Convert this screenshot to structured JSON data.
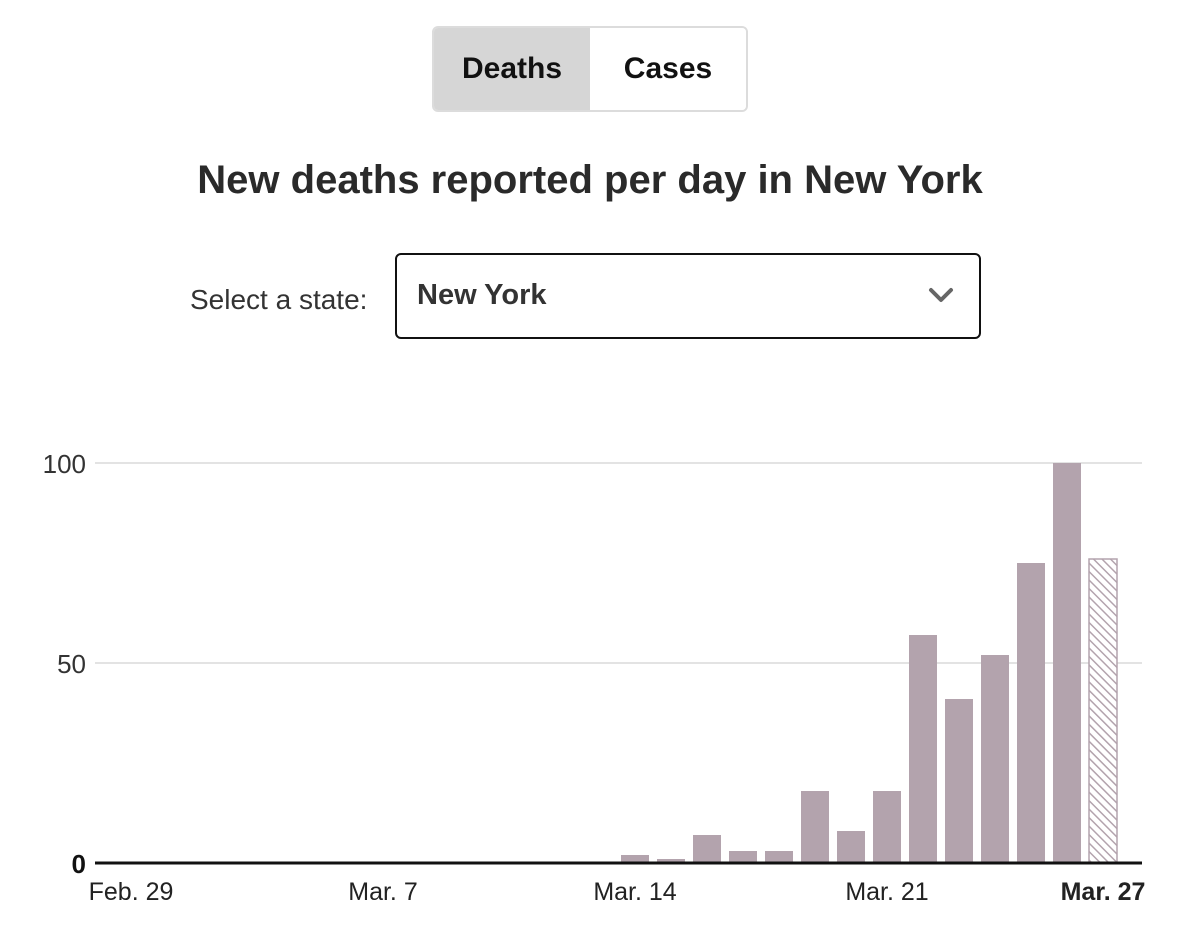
{
  "toggle": {
    "options": [
      {
        "label": "Deaths",
        "active": true
      },
      {
        "label": "Cases",
        "active": false
      }
    ]
  },
  "title": "New deaths reported per day in New York",
  "state_selector": {
    "label": "Select a state:",
    "value": "New York",
    "icon": "chevron-down-icon"
  },
  "colors": {
    "bar": "#b3a3ad",
    "grid": "#e3e3e3",
    "axis": "#111111",
    "hatch_bar": "#b3a3ad"
  },
  "chart_data": {
    "type": "bar",
    "title": "New deaths reported per day in New York",
    "xlabel": "",
    "ylabel": "",
    "ylim": [
      0,
      100
    ],
    "yticks": [
      0,
      50,
      100
    ],
    "ytick_labels": [
      "0",
      "50",
      "100"
    ],
    "x_tick_labels": [
      {
        "label": "Feb. 29",
        "date": "Feb. 29",
        "bold": false
      },
      {
        "label": "Mar. 7",
        "date": "Mar. 7",
        "bold": false
      },
      {
        "label": "Mar. 14",
        "date": "Mar. 14",
        "bold": false
      },
      {
        "label": "Mar. 21",
        "date": "Mar. 21",
        "bold": false
      },
      {
        "label": "Mar. 27",
        "date": "Mar. 27",
        "bold": true
      }
    ],
    "categories": [
      "Feb. 29",
      "Mar. 1",
      "Mar. 2",
      "Mar. 3",
      "Mar. 4",
      "Mar. 5",
      "Mar. 6",
      "Mar. 7",
      "Mar. 8",
      "Mar. 9",
      "Mar. 10",
      "Mar. 11",
      "Mar. 12",
      "Mar. 13",
      "Mar. 14",
      "Mar. 15",
      "Mar. 16",
      "Mar. 17",
      "Mar. 18",
      "Mar. 19",
      "Mar. 20",
      "Mar. 21",
      "Mar. 22",
      "Mar. 23",
      "Mar. 24",
      "Mar. 25",
      "Mar. 26",
      "Mar. 27"
    ],
    "values": [
      0,
      0,
      0,
      0,
      0,
      0,
      0,
      0,
      0,
      0,
      0,
      0,
      0,
      0,
      2,
      1,
      7,
      3,
      3,
      18,
      8,
      18,
      57,
      41,
      52,
      75,
      100,
      76
    ],
    "partial_last_day": true,
    "grid": true,
    "legend": "none"
  }
}
